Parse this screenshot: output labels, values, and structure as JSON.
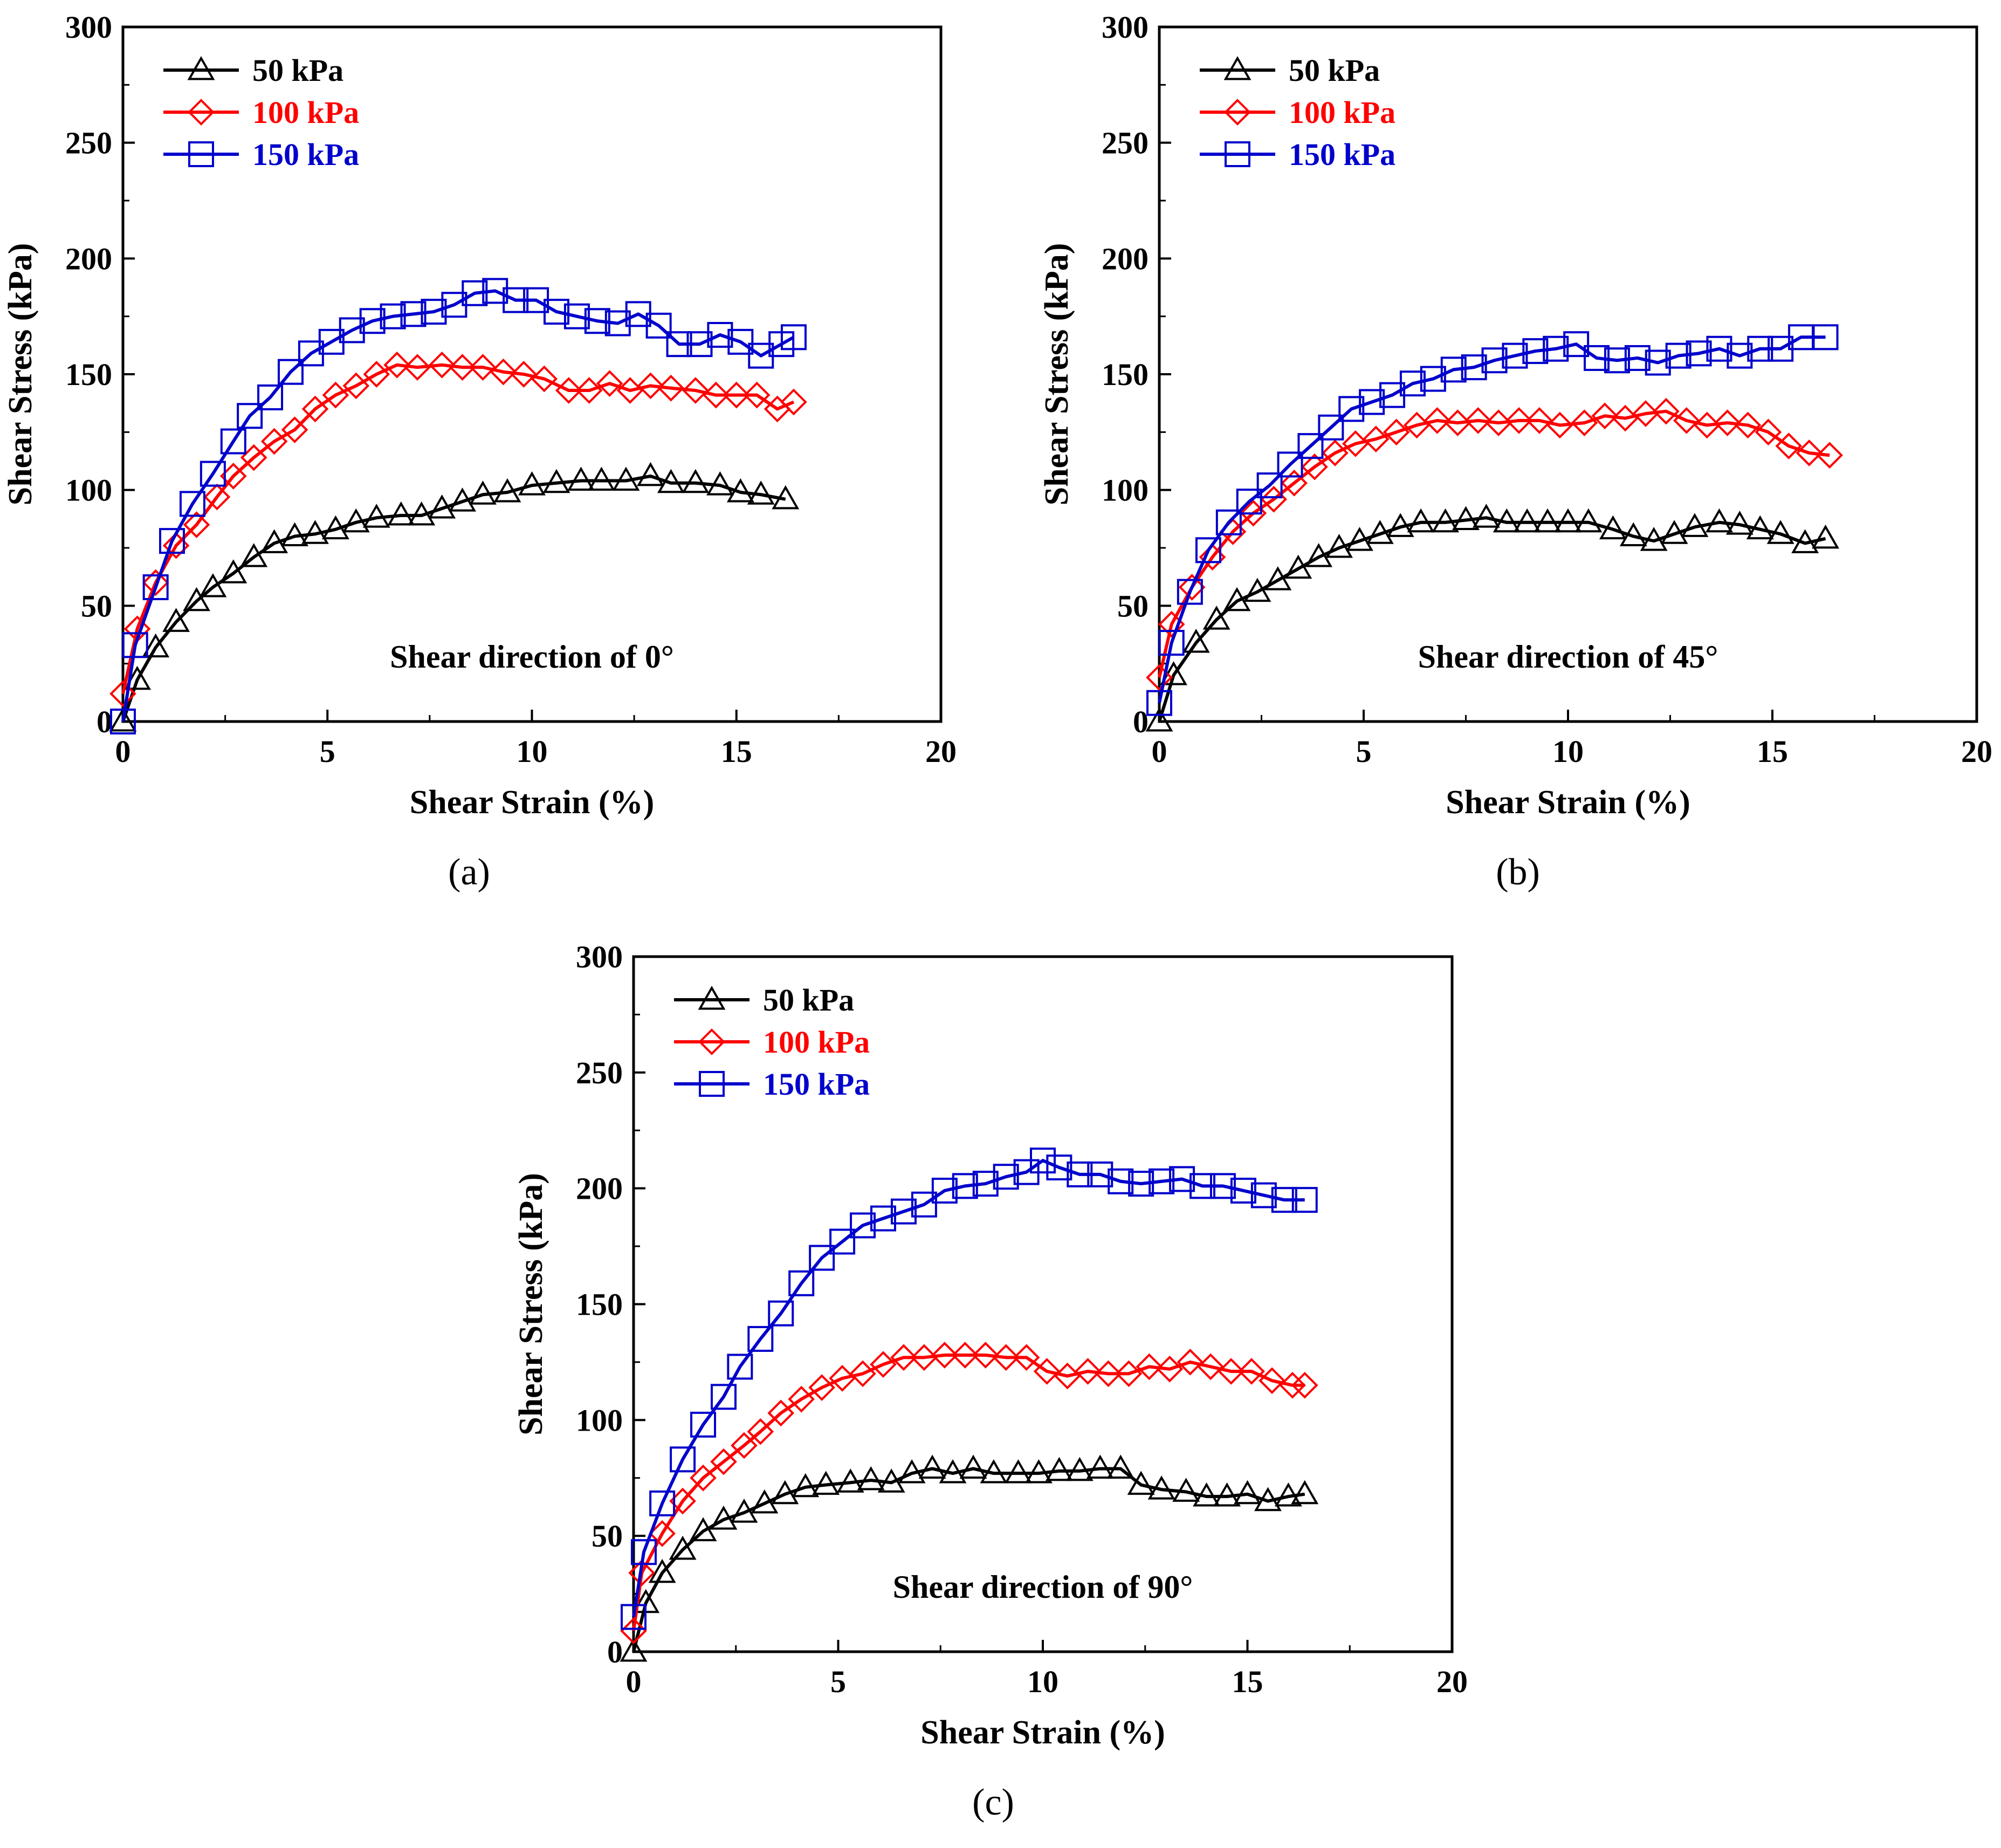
{
  "colors": {
    "s50": "#000000",
    "s100": "#ff0000",
    "s150": "#0000cc"
  },
  "chart_data": [
    {
      "type": "line",
      "panel_label": "(a)",
      "annotation": "Shear direction of 0°",
      "xlabel": "Shear Strain (%)",
      "ylabel": "Shear Stress (kPa)",
      "xlim": [
        0,
        20
      ],
      "ylim": [
        0,
        300
      ],
      "xticks": [
        "0",
        "5",
        "10",
        "15",
        "20"
      ],
      "yticks": [
        "0",
        "50",
        "100",
        "150",
        "200",
        "250",
        "300"
      ],
      "legend_position": "top-left",
      "series": [
        {
          "name": "50 kPa",
          "marker": "triangle",
          "color": "#000000",
          "x": [
            0,
            0.35,
            0.8,
            1.3,
            1.8,
            2.2,
            2.7,
            3.2,
            3.7,
            4.2,
            4.7,
            5.2,
            5.7,
            6.2,
            6.8,
            7.3,
            7.8,
            8.3,
            8.8,
            9.4,
            10.0,
            10.6,
            11.2,
            11.7,
            12.3,
            12.9,
            13.4,
            14.0,
            14.6,
            15.1,
            15.6,
            16.2
          ],
          "values": [
            0,
            18,
            32,
            43,
            52,
            58,
            64,
            71,
            77,
            80,
            81,
            83,
            86,
            88,
            89,
            89,
            92,
            95,
            98,
            99,
            102,
            103,
            104,
            104,
            104,
            106,
            103,
            103,
            102,
            99,
            98,
            96
          ]
        },
        {
          "name": "100 kPa",
          "marker": "diamond",
          "color": "#ff0000",
          "x": [
            0,
            0.35,
            0.8,
            1.3,
            1.8,
            2.3,
            2.7,
            3.2,
            3.7,
            4.2,
            4.7,
            5.2,
            5.7,
            6.2,
            6.7,
            7.2,
            7.8,
            8.3,
            8.8,
            9.3,
            9.8,
            10.3,
            10.9,
            11.4,
            11.9,
            12.4,
            12.9,
            13.4,
            14.0,
            14.5,
            15.0,
            15.5,
            16.0,
            16.4
          ],
          "values": [
            12,
            40,
            60,
            76,
            85,
            97,
            106,
            114,
            121,
            126,
            135,
            141,
            145,
            150,
            154,
            153,
            154,
            153,
            153,
            151,
            150,
            148,
            143,
            143,
            146,
            143,
            145,
            144,
            143,
            141,
            141,
            141,
            135,
            138
          ]
        },
        {
          "name": "150 kPa",
          "marker": "square",
          "color": "#0000cc",
          "x": [
            0,
            0.3,
            0.8,
            1.2,
            1.7,
            2.2,
            2.7,
            3.1,
            3.6,
            4.1,
            4.6,
            5.1,
            5.6,
            6.1,
            6.6,
            7.1,
            7.6,
            8.1,
            8.6,
            9.1,
            9.6,
            10.1,
            10.6,
            11.1,
            11.6,
            12.1,
            12.6,
            13.1,
            13.6,
            14.1,
            14.6,
            15.1,
            15.6,
            16.1,
            16.4
          ],
          "values": [
            0,
            33,
            58,
            78,
            94,
            107,
            121,
            132,
            140,
            151,
            159,
            164,
            169,
            173,
            175,
            176,
            177,
            180,
            185,
            186,
            182,
            182,
            177,
            175,
            173,
            172,
            176,
            171,
            163,
            163,
            167,
            164,
            158,
            163,
            166
          ]
        }
      ]
    },
    {
      "type": "line",
      "panel_label": "(b)",
      "annotation": "Shear direction of 45°",
      "xlabel": "Shear Strain (%)",
      "ylabel": "Shear Stress (kPa)",
      "xlim": [
        0,
        20
      ],
      "ylim": [
        0,
        300
      ],
      "xticks": [
        "0",
        "5",
        "10",
        "15",
        "20"
      ],
      "yticks": [
        "0",
        "50",
        "100",
        "150",
        "200",
        "250",
        "300"
      ],
      "legend_position": "top-left",
      "series": [
        {
          "name": "50 kPa",
          "marker": "triangle",
          "color": "#000000",
          "x": [
            0,
            0.35,
            0.9,
            1.4,
            1.9,
            2.4,
            2.9,
            3.4,
            3.9,
            4.4,
            4.9,
            5.4,
            5.9,
            6.4,
            7.0,
            7.5,
            8.0,
            8.5,
            9.0,
            9.5,
            10.0,
            10.5,
            11.1,
            11.6,
            12.1,
            12.6,
            13.1,
            13.7,
            14.2,
            14.7,
            15.2,
            15.8,
            16.3
          ],
          "values": [
            0,
            20,
            34,
            44,
            52,
            56,
            61,
            66,
            71,
            75,
            78,
            81,
            84,
            86,
            86,
            87,
            88,
            86,
            86,
            86,
            86,
            86,
            83,
            80,
            78,
            81,
            84,
            86,
            85,
            83,
            81,
            77,
            79
          ]
        },
        {
          "name": "100 kPa",
          "marker": "diamond",
          "color": "#ff0000",
          "x": [
            0,
            0.3,
            0.8,
            1.3,
            1.8,
            2.3,
            2.8,
            3.3,
            3.8,
            4.3,
            4.8,
            5.3,
            5.8,
            6.3,
            6.8,
            7.3,
            7.8,
            8.3,
            8.8,
            9.3,
            9.8,
            10.4,
            10.9,
            11.4,
            11.9,
            12.4,
            12.9,
            13.4,
            13.9,
            14.4,
            14.9,
            15.4,
            15.9,
            16.4
          ],
          "values": [
            19,
            42,
            58,
            71,
            82,
            90,
            96,
            103,
            110,
            116,
            120,
            122,
            125,
            128,
            130,
            129,
            130,
            129,
            130,
            130,
            128,
            129,
            132,
            131,
            133,
            134,
            130,
            128,
            129,
            128,
            125,
            119,
            116,
            115
          ]
        },
        {
          "name": "150 kPa",
          "marker": "square",
          "color": "#0000cc",
          "x": [
            0,
            0.3,
            0.75,
            1.2,
            1.7,
            2.2,
            2.7,
            3.2,
            3.7,
            4.2,
            4.7,
            5.2,
            5.7,
            6.2,
            6.7,
            7.2,
            7.7,
            8.2,
            8.7,
            9.2,
            9.7,
            10.2,
            10.7,
            11.2,
            11.7,
            12.2,
            12.7,
            13.2,
            13.7,
            14.2,
            14.7,
            15.2,
            15.7,
            16.3
          ],
          "values": [
            8,
            34,
            56,
            74,
            86,
            95,
            102,
            111,
            119,
            127,
            135,
            138,
            141,
            146,
            148,
            152,
            153,
            156,
            158,
            160,
            161,
            163,
            157,
            156,
            157,
            155,
            158,
            159,
            161,
            158,
            161,
            161,
            166,
            166
          ]
        }
      ]
    },
    {
      "type": "line",
      "panel_label": "(c)",
      "annotation": "Shear direction of 90°",
      "xlabel": "Shear Strain (%)",
      "ylabel": "Shear Stress (kPa)",
      "xlim": [
        0,
        20
      ],
      "ylim": [
        0,
        300
      ],
      "xticks": [
        "0",
        "5",
        "10",
        "15",
        "20"
      ],
      "yticks": [
        "0",
        "50",
        "100",
        "150",
        "200",
        "250",
        "300"
      ],
      "legend_position": "top-left",
      "series": [
        {
          "name": "50 kPa",
          "marker": "triangle",
          "color": "#000000",
          "x": [
            0,
            0.3,
            0.7,
            1.2,
            1.7,
            2.2,
            2.7,
            3.2,
            3.7,
            4.2,
            4.7,
            5.3,
            5.8,
            6.3,
            6.8,
            7.3,
            7.8,
            8.3,
            8.8,
            9.4,
            9.9,
            10.4,
            10.9,
            11.4,
            11.9,
            12.4,
            12.9,
            13.5,
            14.0,
            14.5,
            15.0,
            15.5,
            16.0,
            16.4
          ],
          "values": [
            0,
            21,
            34,
            44,
            52,
            57,
            60,
            64,
            68,
            71,
            72,
            73,
            74,
            73,
            77,
            79,
            77,
            79,
            77,
            77,
            77,
            78,
            78,
            79,
            79,
            72,
            70,
            69,
            67,
            67,
            68,
            65,
            67,
            68
          ]
        },
        {
          "name": "100 kPa",
          "marker": "diamond",
          "color": "#ff0000",
          "x": [
            0,
            0.2,
            0.7,
            1.2,
            1.7,
            2.2,
            2.7,
            3.1,
            3.6,
            4.1,
            4.6,
            5.1,
            5.6,
            6.1,
            6.6,
            7.1,
            7.6,
            8.1,
            8.6,
            9.1,
            9.6,
            10.1,
            10.6,
            11.1,
            11.6,
            12.1,
            12.6,
            13.1,
            13.6,
            14.1,
            14.6,
            15.1,
            15.6,
            16.1,
            16.4
          ],
          "values": [
            9,
            34,
            51,
            65,
            75,
            82,
            89,
            95,
            103,
            109,
            114,
            118,
            120,
            124,
            127,
            127,
            128,
            128,
            128,
            127,
            127,
            121,
            119,
            121,
            120,
            120,
            123,
            122,
            125,
            123,
            121,
            121,
            117,
            115,
            115
          ]
        },
        {
          "name": "150 kPa",
          "marker": "square",
          "color": "#0000cc",
          "x": [
            0,
            0.25,
            0.7,
            1.2,
            1.7,
            2.2,
            2.6,
            3.1,
            3.6,
            4.1,
            4.6,
            5.1,
            5.6,
            6.1,
            6.6,
            7.1,
            7.6,
            8.1,
            8.6,
            9.1,
            9.6,
            10.0,
            10.4,
            10.9,
            11.4,
            11.9,
            12.4,
            12.9,
            13.4,
            13.9,
            14.4,
            14.9,
            15.4,
            15.9,
            16.4
          ],
          "values": [
            15,
            43,
            64,
            83,
            98,
            110,
            123,
            135,
            146,
            159,
            170,
            177,
            184,
            187,
            190,
            193,
            199,
            201,
            202,
            205,
            207,
            212,
            209,
            206,
            206,
            203,
            202,
            203,
            204,
            201,
            201,
            199,
            197,
            195,
            195
          ]
        }
      ]
    }
  ]
}
